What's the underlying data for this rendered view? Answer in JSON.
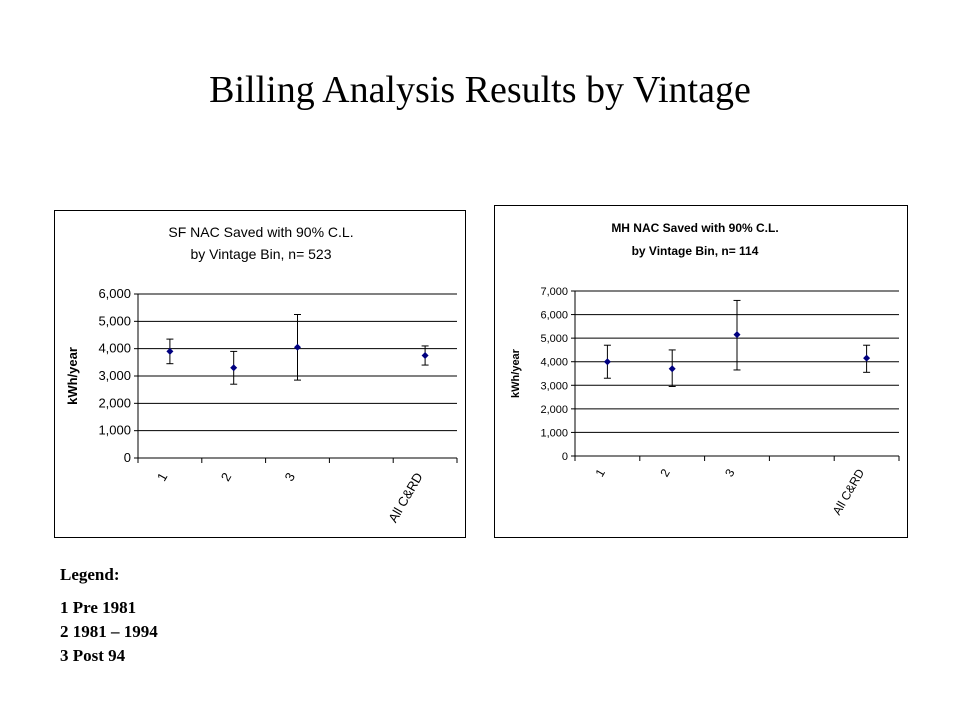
{
  "slide": {
    "title": "Billing Analysis Results by Vintage"
  },
  "legend": {
    "title": "Legend:",
    "items": [
      "1 Pre 1981",
      "2 1981 – 1994",
      "3 Post 94"
    ]
  },
  "colors": {
    "marker": "#000080",
    "axis": "#000000",
    "gridline": "#000000"
  },
  "chart_data": [
    {
      "type": "scatter",
      "title_lines": [
        "SF NAC Saved with 90% C.L.",
        "by Vintage Bin, n= 523"
      ],
      "ylabel": "kWh/year",
      "categories": [
        "1",
        "2",
        "3",
        "",
        "All C&RD"
      ],
      "ylim": [
        0,
        6000
      ],
      "yticks": [
        0,
        1000,
        2000,
        3000,
        4000,
        5000,
        6000
      ],
      "ytick_labels": [
        "0",
        "1,000",
        "2,000",
        "3,000",
        "4,000",
        "5,000",
        "6,000"
      ],
      "grid": true,
      "series": [
        {
          "values": [
            3900,
            3300,
            4050,
            null,
            3750
          ],
          "lower": [
            3450,
            2700,
            2850,
            null,
            3400
          ],
          "upper": [
            4350,
            3900,
            5250,
            null,
            4100
          ]
        }
      ]
    },
    {
      "type": "scatter",
      "title_lines": [
        "MH NAC Saved with 90% C.L.",
        "by Vintage Bin, n= 114"
      ],
      "ylabel": "kWh/year",
      "categories": [
        "1",
        "2",
        "3",
        "",
        "All C&RD"
      ],
      "ylim": [
        0,
        7000
      ],
      "yticks": [
        0,
        1000,
        2000,
        3000,
        4000,
        5000,
        6000,
        7000
      ],
      "ytick_labels": [
        "0",
        "1,000",
        "2,000",
        "3,000",
        "4,000",
        "5,000",
        "6,000",
        "7,000"
      ],
      "grid": true,
      "series": [
        {
          "values": [
            4000,
            3700,
            5150,
            null,
            4150
          ],
          "lower": [
            3300,
            2950,
            3650,
            null,
            3550
          ],
          "upper": [
            4700,
            4500,
            6600,
            null,
            4700
          ]
        }
      ]
    }
  ]
}
